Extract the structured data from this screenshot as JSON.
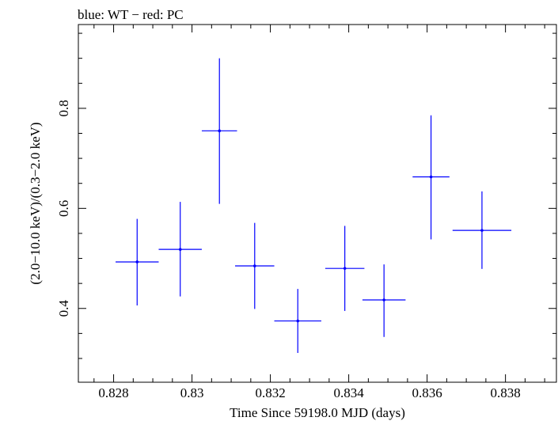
{
  "chart_data": {
    "type": "scatter",
    "title": "blue: WT − red: PC",
    "xlabel": "Time Since 59198.0 MJD (days)",
    "ylabel": "(2.0−10.0 keV)/(0.3−2.0 keV)",
    "xlim": [
      0.8271,
      0.8393
    ],
    "ylim": [
      0.2525,
      0.9675
    ],
    "x_ticks": [
      0.828,
      0.83,
      0.832,
      0.834,
      0.836,
      0.838
    ],
    "x_tick_labels": [
      "0.828",
      "0.83",
      "0.832",
      "0.834",
      "0.836",
      "0.838"
    ],
    "y_ticks": [
      0.4,
      0.6,
      0.8
    ],
    "y_tick_labels": [
      "0.4",
      "0.6",
      "0.8"
    ],
    "grid": false,
    "series": [
      {
        "color": "#0000ff",
        "points": [
          {
            "x": 0.8286,
            "y": 0.493,
            "xerr": 0.00055,
            "yerr_lo": 0.087,
            "yerr_hi": 0.086
          },
          {
            "x": 0.8297,
            "y": 0.518,
            "xerr": 0.00055,
            "yerr_lo": 0.094,
            "yerr_hi": 0.095
          },
          {
            "x": 0.8307,
            "y": 0.755,
            "xerr": 0.00045,
            "yerr_lo": 0.146,
            "yerr_hi": 0.145
          },
          {
            "x": 0.8316,
            "y": 0.485,
            "xerr": 0.0005,
            "yerr_lo": 0.086,
            "yerr_hi": 0.086
          },
          {
            "x": 0.8327,
            "y": 0.375,
            "xerr": 0.0006,
            "yerr_lo": 0.064,
            "yerr_hi": 0.064
          },
          {
            "x": 0.8339,
            "y": 0.48,
            "xerr": 0.0005,
            "yerr_lo": 0.085,
            "yerr_hi": 0.085
          },
          {
            "x": 0.8349,
            "y": 0.417,
            "xerr": 0.00055,
            "yerr_lo": 0.074,
            "yerr_hi": 0.071
          },
          {
            "x": 0.8361,
            "y": 0.663,
            "xerr": 0.00047,
            "yerr_lo": 0.125,
            "yerr_hi": 0.123
          },
          {
            "x": 0.8374,
            "y": 0.556,
            "xerr": 0.00075,
            "yerr_lo": 0.077,
            "yerr_hi": 0.078
          }
        ]
      }
    ]
  }
}
